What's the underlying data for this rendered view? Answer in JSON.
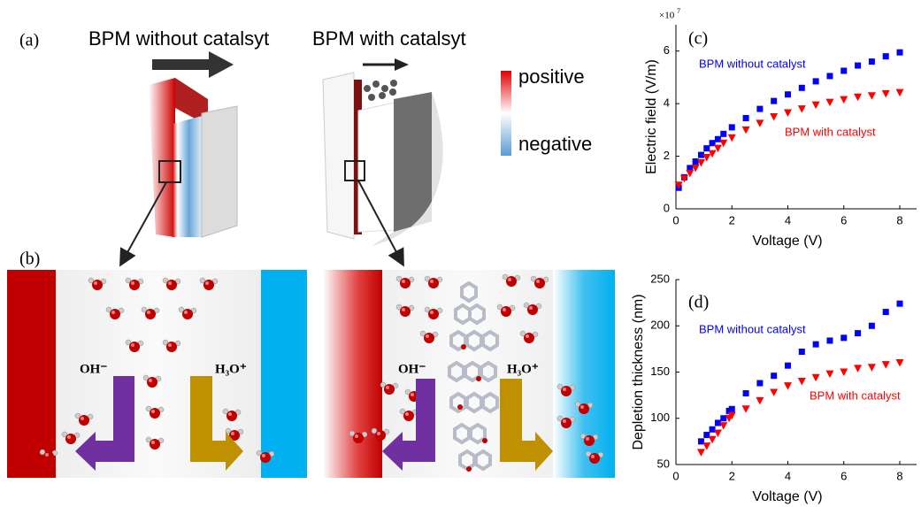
{
  "figure": {
    "panel_a": "(a)",
    "panel_b": "(b)",
    "title_left": "BPM without catalsyt",
    "title_right": "BPM with catalsyt",
    "colorbar_top": "positive",
    "colorbar_bottom": "negative",
    "left_oh": "OH⁻",
    "left_h3o": "H₃O⁺",
    "right_oh": "OH⁻",
    "right_h3o": "H₃O⁺"
  },
  "chart_data": [
    {
      "type": "scatter",
      "panel_label": "(c)",
      "xlabel": "Voltage (V)",
      "ylabel": "Electric field (V/m)",
      "y_multiplier": "×10",
      "y_multiplier_exponent": "7",
      "xlim": [
        0,
        8.6
      ],
      "ylim": [
        0,
        7
      ],
      "xticks": [
        0,
        2,
        4,
        6,
        8
      ],
      "yticks": [
        0,
        2,
        4,
        6
      ],
      "series": [
        {
          "name": "BPM without catalyst",
          "color": "#0000ff",
          "marker": "square",
          "x": [
            0.1,
            0.3,
            0.5,
            0.7,
            0.9,
            1.1,
            1.3,
            1.5,
            1.7,
            2,
            2.5,
            3,
            3.5,
            4,
            4.5,
            5,
            5.5,
            6,
            6.5,
            7,
            7.5,
            8
          ],
          "values": [
            0.8,
            1.2,
            1.55,
            1.8,
            2.05,
            2.3,
            2.5,
            2.65,
            2.85,
            3.1,
            3.45,
            3.8,
            4.1,
            4.35,
            4.6,
            4.85,
            5.05,
            5.25,
            5.45,
            5.6,
            5.8,
            5.95
          ]
        },
        {
          "name": "BPM with catalyst",
          "color": "#ff0000",
          "marker": "triangle-down",
          "x": [
            0.1,
            0.3,
            0.5,
            0.7,
            0.9,
            1.1,
            1.3,
            1.5,
            1.7,
            2,
            2.5,
            3,
            3.5,
            4,
            4.5,
            5,
            5.5,
            6,
            6.5,
            7,
            7.5,
            8
          ],
          "values": [
            0.9,
            1.15,
            1.35,
            1.55,
            1.75,
            1.95,
            2.1,
            2.3,
            2.5,
            2.7,
            3.0,
            3.25,
            3.5,
            3.65,
            3.8,
            3.95,
            4.05,
            4.15,
            4.25,
            4.3,
            4.38,
            4.42
          ]
        }
      ]
    },
    {
      "type": "scatter",
      "panel_label": "(d)",
      "xlabel": "Voltage (V)",
      "ylabel": "Depletion thickness (nm)",
      "xlim": [
        0,
        8.6
      ],
      "ylim": [
        50,
        250
      ],
      "xticks": [
        0,
        2,
        4,
        6,
        8
      ],
      "yticks": [
        50,
        100,
        150,
        200,
        250
      ],
      "series": [
        {
          "name": "BPM without catalyst",
          "color": "#0000ff",
          "marker": "square",
          "x": [
            0.9,
            1.1,
            1.3,
            1.5,
            1.7,
            1.9,
            2,
            2.5,
            3,
            3.5,
            4,
            4.5,
            5,
            5.5,
            6,
            6.5,
            7,
            7.5,
            8
          ],
          "values": [
            75,
            82,
            88,
            95,
            100,
            108,
            110,
            127,
            138,
            146,
            157,
            172,
            180,
            184,
            187,
            192,
            200,
            215,
            224
          ]
        },
        {
          "name": "BPM with catalyst",
          "color": "#ff0000",
          "marker": "triangle-down",
          "x": [
            0.9,
            1.1,
            1.3,
            1.5,
            1.7,
            1.9,
            2,
            2.5,
            3,
            3.5,
            4,
            4.5,
            5,
            5.5,
            6,
            6.5,
            7,
            7.5,
            8
          ],
          "values": [
            63,
            70,
            77,
            84,
            92,
            100,
            103,
            110,
            119,
            128,
            135,
            140,
            144,
            148,
            150,
            154,
            155,
            158,
            160
          ]
        }
      ]
    }
  ]
}
